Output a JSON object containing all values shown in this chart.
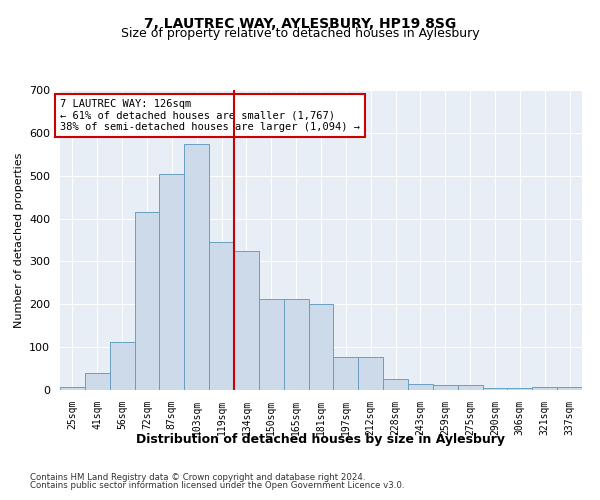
{
  "title": "7, LAUTREC WAY, AYLESBURY, HP19 8SG",
  "subtitle": "Size of property relative to detached houses in Aylesbury",
  "xlabel": "Distribution of detached houses by size in Aylesbury",
  "ylabel": "Number of detached properties",
  "bar_labels": [
    "25sqm",
    "41sqm",
    "56sqm",
    "72sqm",
    "87sqm",
    "103sqm",
    "119sqm",
    "134sqm",
    "150sqm",
    "165sqm",
    "181sqm",
    "197sqm",
    "212sqm",
    "228sqm",
    "243sqm",
    "259sqm",
    "275sqm",
    "290sqm",
    "306sqm",
    "321sqm",
    "337sqm"
  ],
  "bar_heights": [
    8,
    40,
    112,
    415,
    505,
    575,
    345,
    325,
    212,
    212,
    200,
    78,
    78,
    25,
    15,
    12,
    12,
    5,
    5,
    8,
    8
  ],
  "bar_color": "#cddaea",
  "bar_edge_color": "#6a9fc0",
  "vline_color": "#cc0000",
  "vline_pos": 6.5,
  "annotation_text": "7 LAUTREC WAY: 126sqm\n← 61% of detached houses are smaller (1,767)\n38% of semi-detached houses are larger (1,094) →",
  "annotation_box_color": "#ffffff",
  "annotation_box_edge": "#cc0000",
  "ylim": [
    0,
    700
  ],
  "yticks": [
    0,
    100,
    200,
    300,
    400,
    500,
    600,
    700
  ],
  "footer1": "Contains HM Land Registry data © Crown copyright and database right 2024.",
  "footer2": "Contains public sector information licensed under the Open Government Licence v3.0.",
  "plot_bg_color": "#e8eef5",
  "title_fontsize": 10,
  "subtitle_fontsize": 9,
  "ylabel_fontsize": 8,
  "xlabel_fontsize": 9
}
